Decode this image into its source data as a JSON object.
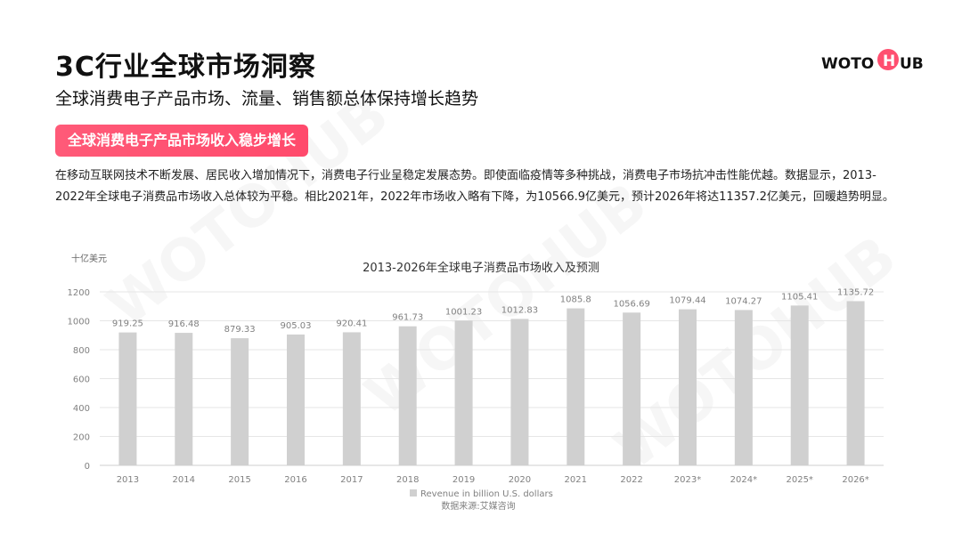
{
  "header": {
    "title": "3C行业全球市场洞察",
    "subtitle": "全球消费电子产品市场、流量、销售额总体保持增长趋势",
    "logo_text": "WOTOHUB"
  },
  "badge": {
    "label": "全球消费电子产品市场收入稳步增长"
  },
  "body": {
    "paragraph": "在移动互联网技术不断发展、居民收入增加情况下，消费电子行业呈稳定发展态势。即使面临疫情等多种挑战，消费电子市场抗冲击性能优越。数据显示，2013-2022年全球电子消费品市场收入总体较为平稳。相比2021年，2022年市场收入略有下降，为10566.9亿美元，预计2026年将达11357.2亿美元，回暖趋势明显。"
  },
  "chart_data": {
    "type": "bar",
    "title": "2013-2026年全球电子消费品市场收入及预测",
    "ylabel": "十亿美元",
    "xlabel": "",
    "categories": [
      "2013",
      "2014",
      "2015",
      "2016",
      "2017",
      "2018",
      "2019",
      "2020",
      "2021",
      "2022",
      "2023*",
      "2024*",
      "2025*",
      "2026*"
    ],
    "series": [
      {
        "name": "Revenue in billion U.S. dollars",
        "values": [
          919.25,
          916.48,
          879.33,
          905.03,
          920.41,
          961.73,
          1001.23,
          1012.83,
          1085.8,
          1056.69,
          1079.44,
          1074.27,
          1105.41,
          1135.72
        ]
      }
    ],
    "data_labels": [
      "919.25",
      "916.48",
      "879.33",
      "905.03",
      "920.41",
      "961.73",
      "1001.23",
      "1012.83",
      "1085.8",
      "1056.69",
      "1079.44",
      "1074.27",
      "1105.41",
      "1135.72"
    ],
    "yticks": [
      0,
      200,
      400,
      600,
      800,
      1000,
      1200
    ],
    "ylim": [
      0,
      1200
    ],
    "grid": true,
    "legend": "bottom",
    "source": "数据来源:艾媒咨询",
    "colors": {
      "bar": "#d0d0d0",
      "grid": "#e6e6e6",
      "axis_text": "#808080"
    }
  },
  "theme": {
    "accent": "#ff4f70"
  }
}
